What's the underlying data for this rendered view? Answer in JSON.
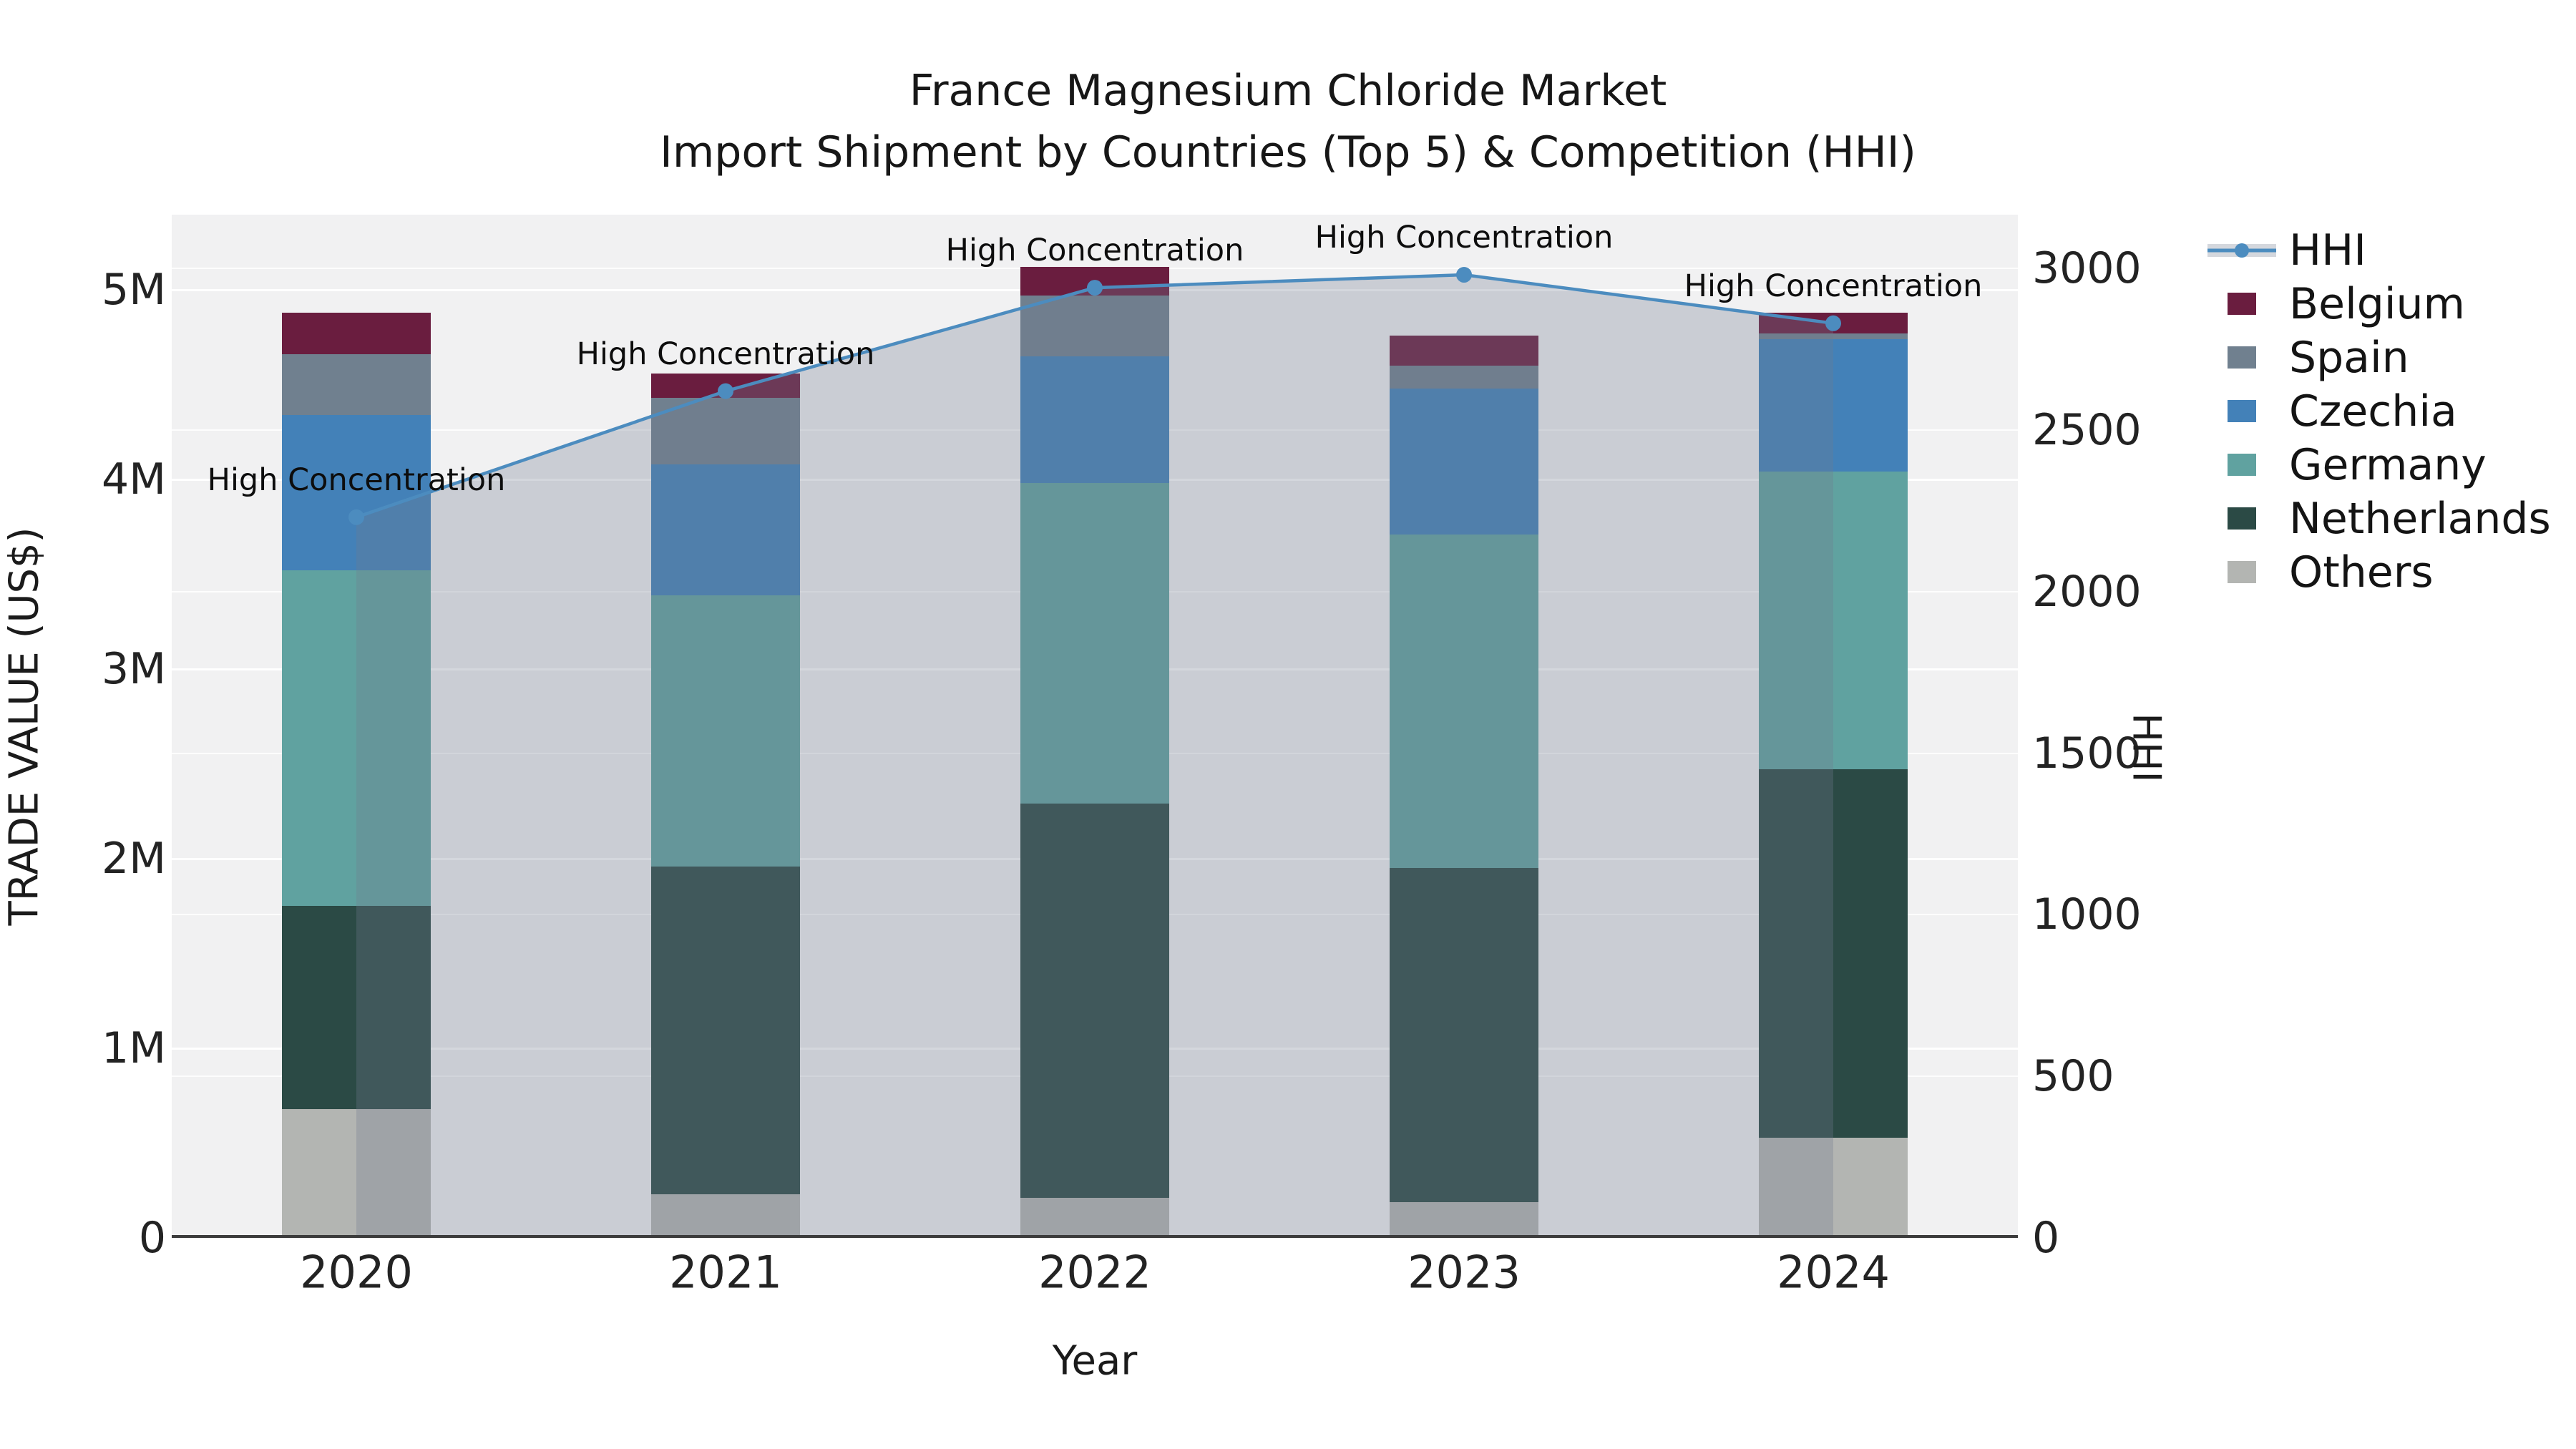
{
  "title": {
    "line1": "France Magnesium Chloride Market",
    "line2": "Import Shipment by Countries (Top 5) & Competition (HHI)"
  },
  "axes": {
    "left": {
      "label": "TRADE VALUE (US$)",
      "ticks": [
        "0",
        "1M",
        "2M",
        "3M",
        "4M",
        "5M"
      ]
    },
    "right": {
      "label": "HHI",
      "ticks": [
        "0",
        "500",
        "1000",
        "1500",
        "2000",
        "2500",
        "3000"
      ]
    },
    "x": {
      "label": "Year",
      "ticks": [
        "2020",
        "2021",
        "2022",
        "2023",
        "2024"
      ]
    }
  },
  "annotation": {
    "text": "High Concentration"
  },
  "legend": {
    "items": [
      {
        "label": "HHI",
        "color": "#4C8CBF",
        "band_color": "#D4D7DD"
      },
      {
        "label": "Belgium",
        "color": "#6A1D3F"
      },
      {
        "label": "Spain",
        "color": "#70808F"
      },
      {
        "label": "Czechia",
        "color": "#4381B8"
      },
      {
        "label": "Germany",
        "color": "#60A2A0"
      },
      {
        "label": "Netherlands",
        "color": "#2B4A45"
      },
      {
        "label": "Others",
        "color": "#B3B5B2"
      }
    ]
  },
  "chart_data": {
    "type": "bar",
    "stacked": true,
    "title": "France Magnesium Chloride Market — Import Shipment by Countries (Top 5) & Competition (HHI)",
    "categories": [
      "2020",
      "2021",
      "2022",
      "2023",
      "2024"
    ],
    "value_unit": "US$",
    "series": [
      {
        "name": "Others",
        "color": "#B3B5B2",
        "values": [
          680000,
          230000,
          210000,
          190000,
          530000
        ]
      },
      {
        "name": "Netherlands",
        "color": "#2B4A45",
        "values": [
          1070000,
          1730000,
          2080000,
          1760000,
          1940000
        ]
      },
      {
        "name": "Germany",
        "color": "#60A2A0",
        "values": [
          1770000,
          1430000,
          1690000,
          1760000,
          1570000
        ]
      },
      {
        "name": "Czechia",
        "color": "#4381B8",
        "values": [
          820000,
          690000,
          670000,
          770000,
          700000
        ]
      },
      {
        "name": "Spain",
        "color": "#70808F",
        "values": [
          320000,
          350000,
          320000,
          120000,
          30000
        ]
      },
      {
        "name": "Belgium",
        "color": "#6A1D3F",
        "values": [
          220000,
          130000,
          150000,
          160000,
          110000
        ]
      }
    ],
    "bar_totals": [
      4880000,
      4560000,
      5120000,
      4760000,
      4880000
    ],
    "line_series": {
      "name": "HHI",
      "axis": "right",
      "color": "#4C8CBF",
      "fill_color": "rgba(111,121,142,0.30)",
      "marker": "circle",
      "values": [
        2230,
        2620,
        2940,
        2980,
        2830
      ],
      "annotations": [
        "High Concentration",
        "High Concentration",
        "High Concentration",
        "High Concentration",
        "High Concentration"
      ]
    },
    "xlabel": "Year",
    "ylabel_left": "TRADE VALUE (US$)",
    "ylabel_right": "HHI",
    "ylim_left": [
      0,
      5400000
    ],
    "ylim_right": [
      0,
      3166
    ],
    "yticks_left_labels": [
      "0",
      "1M",
      "2M",
      "3M",
      "4M",
      "5M"
    ],
    "yticks_right": [
      0,
      500,
      1000,
      1500,
      2000,
      2500,
      3000
    ],
    "grid": true,
    "legend_position": "right of plot"
  }
}
